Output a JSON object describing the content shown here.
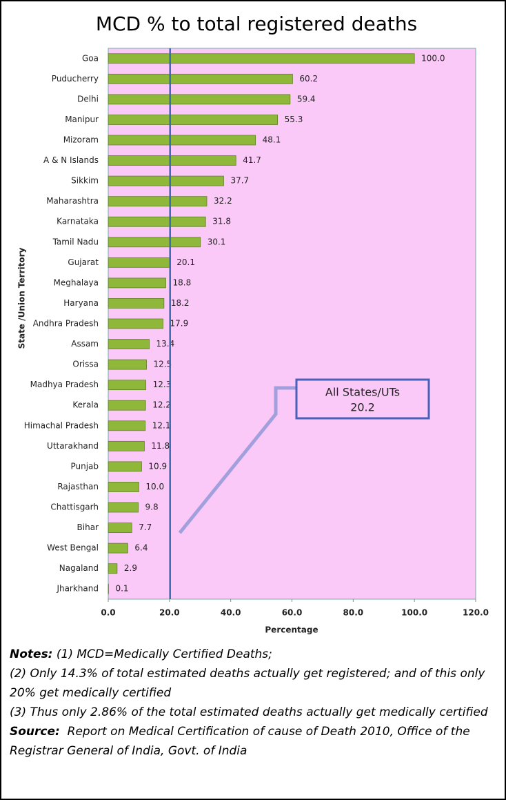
{
  "chart_data": {
    "type": "bar",
    "orientation": "horizontal",
    "title": "MCD % to total registered deaths",
    "x_label": "Percentage",
    "y_label": "State /Union Territory",
    "categories": [
      "Goa",
      "Puducherry",
      "Delhi",
      "Manipur",
      "Mizoram",
      "A & N Islands",
      "Sikkim",
      "Maharashtra",
      "Karnataka",
      "Tamil Nadu",
      "Gujarat",
      "Meghalaya",
      "Haryana",
      "Andhra Pradesh",
      "Assam",
      "Orissa",
      "Madhya Pradesh",
      "Kerala",
      "Himachal Pradesh",
      "Uttarakhand",
      "Punjab",
      "Rajasthan",
      "Chattisgarh",
      "Bihar",
      "West Bengal",
      "Nagaland",
      "Jharkhand"
    ],
    "values": [
      100,
      60.2,
      59.4,
      55.3,
      48.1,
      41.7,
      37.7,
      32.2,
      31.8,
      30.1,
      20.1,
      18.8,
      18.2,
      17.9,
      13.4,
      12.5,
      12.3,
      12.2,
      12.1,
      11.8,
      10.9,
      10,
      9.8,
      7.7,
      6.4,
      2.9,
      0.1
    ],
    "value_labels": [
      "100.0",
      "60.2",
      "59.4",
      "55.3",
      "48.1",
      "41.7",
      "37.7",
      "32.2",
      "31.8",
      "30.1",
      "20.1",
      "18.8",
      "18.2",
      "17.9",
      "13.4",
      "12.5",
      "12.3",
      "12.2",
      "12.1",
      "11.8",
      "10.9",
      "10.0",
      "9.8",
      "7.7",
      "6.4",
      "2.9",
      "0.1"
    ],
    "color": "#8fb83a",
    "xlim": [
      0,
      120
    ],
    "xticks": [
      {
        "value": 0,
        "label": "0.0"
      },
      {
        "value": 20,
        "label": "20.0"
      },
      {
        "value": 40,
        "label": "40.0"
      },
      {
        "value": 60,
        "label": "60.0"
      },
      {
        "value": 80,
        "label": "80.0"
      },
      {
        "value": 100,
        "label": "100.0"
      },
      {
        "value": 120,
        "label": "120.0"
      }
    ],
    "reference_line": {
      "label": "All States/UTs",
      "value": 20.2,
      "color": "#3a6bb0"
    },
    "background": "#fbc9f8"
  },
  "notes": {
    "label": "Notes:",
    "items": [
      "(1) MCD=Medically Certified Deaths;",
      "(2) Only 14.3% of total estimated deaths actually get registered; and of this only 20% get medically certified",
      "(3) Thus only 2.86% of the total estimated deaths actually get medically certified"
    ]
  },
  "source": {
    "label": "Source:",
    "text": "Report on Medical Certification of cause of Death 2010, Office of the Registrar General of India, Govt. of India"
  }
}
